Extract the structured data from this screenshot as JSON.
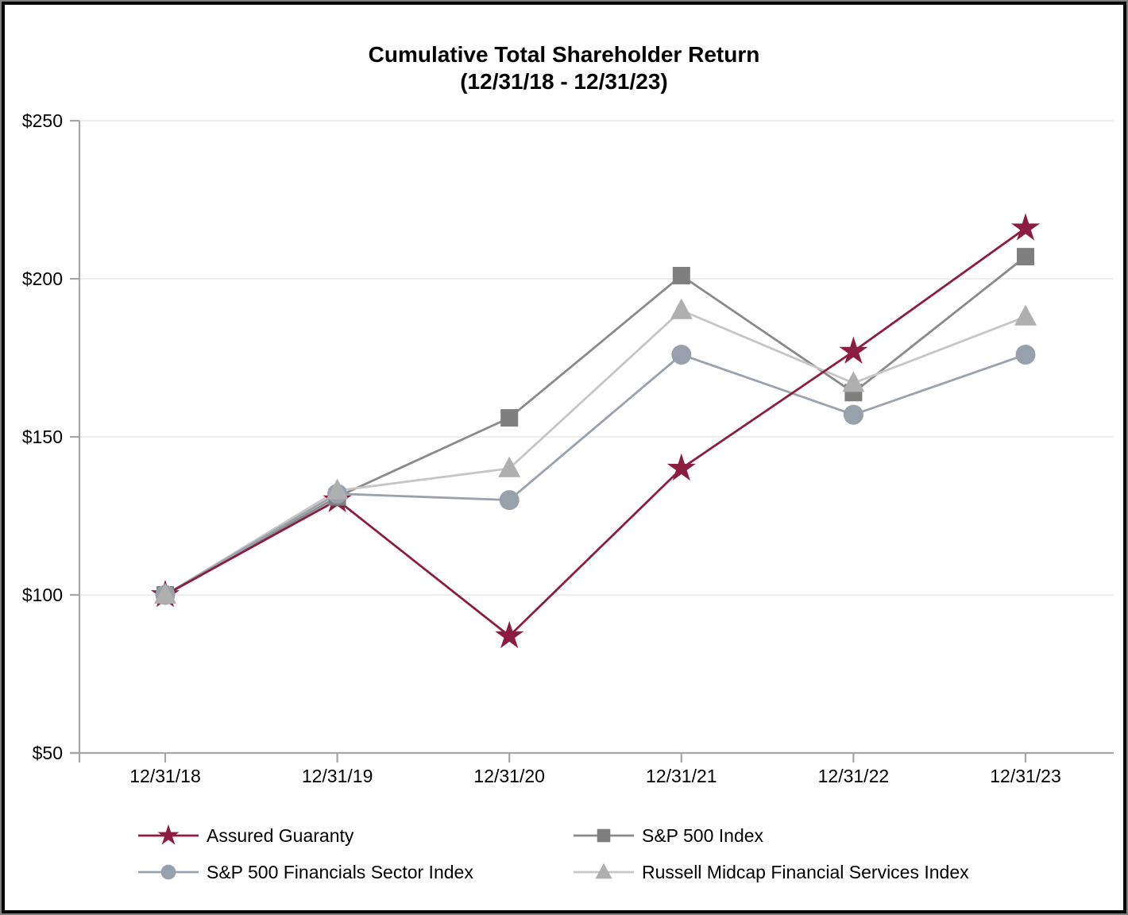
{
  "chart_data": {
    "type": "line",
    "title": "Cumulative Total Shareholder Return",
    "subtitle": "(12/31/18 - 12/31/23)",
    "categories": [
      "12/31/18",
      "12/31/19",
      "12/31/20",
      "12/31/21",
      "12/31/22",
      "12/31/23"
    ],
    "series": [
      {
        "name": "Assured Guaranty",
        "marker": "star",
        "color": "#8C1D40",
        "line_color": "#8C1D40",
        "values": [
          100,
          130,
          87,
          140,
          177,
          216
        ]
      },
      {
        "name": "S&P 500 Index",
        "marker": "square",
        "color": "#7F7F7F",
        "line_color": "#8A8A8A",
        "values": [
          100,
          131,
          156,
          201,
          164,
          207
        ]
      },
      {
        "name": "S&P 500 Financials Sector Index",
        "marker": "circle",
        "color": "#98A1AB",
        "line_color": "#9AA3AD",
        "values": [
          100,
          132,
          130,
          176,
          157,
          176
        ]
      },
      {
        "name": "Russell Midcap Financial Services Index",
        "marker": "triangle",
        "color": "#AFAFAF",
        "line_color": "#C6C6C6",
        "values": [
          100,
          133,
          140,
          190,
          167,
          188
        ]
      }
    ],
    "xlabel": "",
    "ylabel": "",
    "ylim": [
      50,
      250
    ],
    "ytick_values": [
      50,
      100,
      150,
      200,
      250
    ],
    "ytick_labels": [
      "$50",
      "$100",
      "$150",
      "$200",
      "$250"
    ],
    "currency_prefix": "$",
    "grid": "horizontal",
    "legend_position": "bottom",
    "axis_color": "#A6A6A6",
    "gridline_color": "#E8E8E8",
    "text_color": "#000000"
  }
}
